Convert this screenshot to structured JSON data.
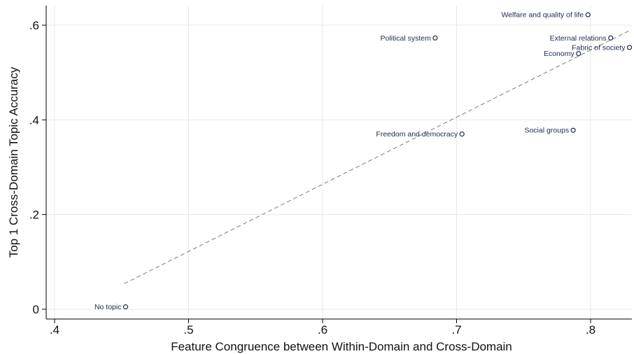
{
  "chart_data": {
    "type": "scatter",
    "title": "",
    "xlabel": "Feature Congruence between Within-Domain and Cross-Domain",
    "ylabel": "Top 1 Cross-Domain Topic Accuracy",
    "xlim": [
      0.4,
      0.83
    ],
    "ylim": [
      0,
      0.64
    ],
    "x_ticks": [
      0.4,
      0.5,
      0.6,
      0.7,
      0.8
    ],
    "x_tick_labels": [
      ".4",
      ".5",
      ".6",
      ".7",
      ".8"
    ],
    "y_ticks": [
      0,
      0.2,
      0.4,
      0.6
    ],
    "y_tick_labels": [
      "0",
      ".2",
      ".4",
      ".6"
    ],
    "grid": true,
    "legend": "none",
    "colors": {
      "marker": "#1a2b4c",
      "label": "#1a2b4c",
      "fit_line": "#7a7a7a",
      "grid": "#e8e8e8",
      "axis": "#000000"
    },
    "points": [
      {
        "label": "No topic",
        "x": 0.453,
        "y": 0.005,
        "label_side": "left"
      },
      {
        "label": "Political system",
        "x": 0.684,
        "y": 0.573,
        "label_side": "left"
      },
      {
        "label": "Freedom and democracy",
        "x": 0.704,
        "y": 0.37,
        "label_side": "left"
      },
      {
        "label": "Welfare and quality of life",
        "x": 0.798,
        "y": 0.622,
        "label_side": "left"
      },
      {
        "label": "External relations",
        "x": 0.815,
        "y": 0.573,
        "label_side": "left"
      },
      {
        "label": "Fabric of society",
        "x": 0.829,
        "y": 0.553,
        "label_side": "left"
      },
      {
        "label": "Economy",
        "x": 0.791,
        "y": 0.54,
        "label_side": "left"
      },
      {
        "label": "Social groups",
        "x": 0.787,
        "y": 0.378,
        "label_side": "left"
      }
    ],
    "fit_line": {
      "style": "dashed",
      "x": [
        0.452,
        0.83
      ],
      "y": [
        0.054,
        0.59
      ]
    }
  }
}
